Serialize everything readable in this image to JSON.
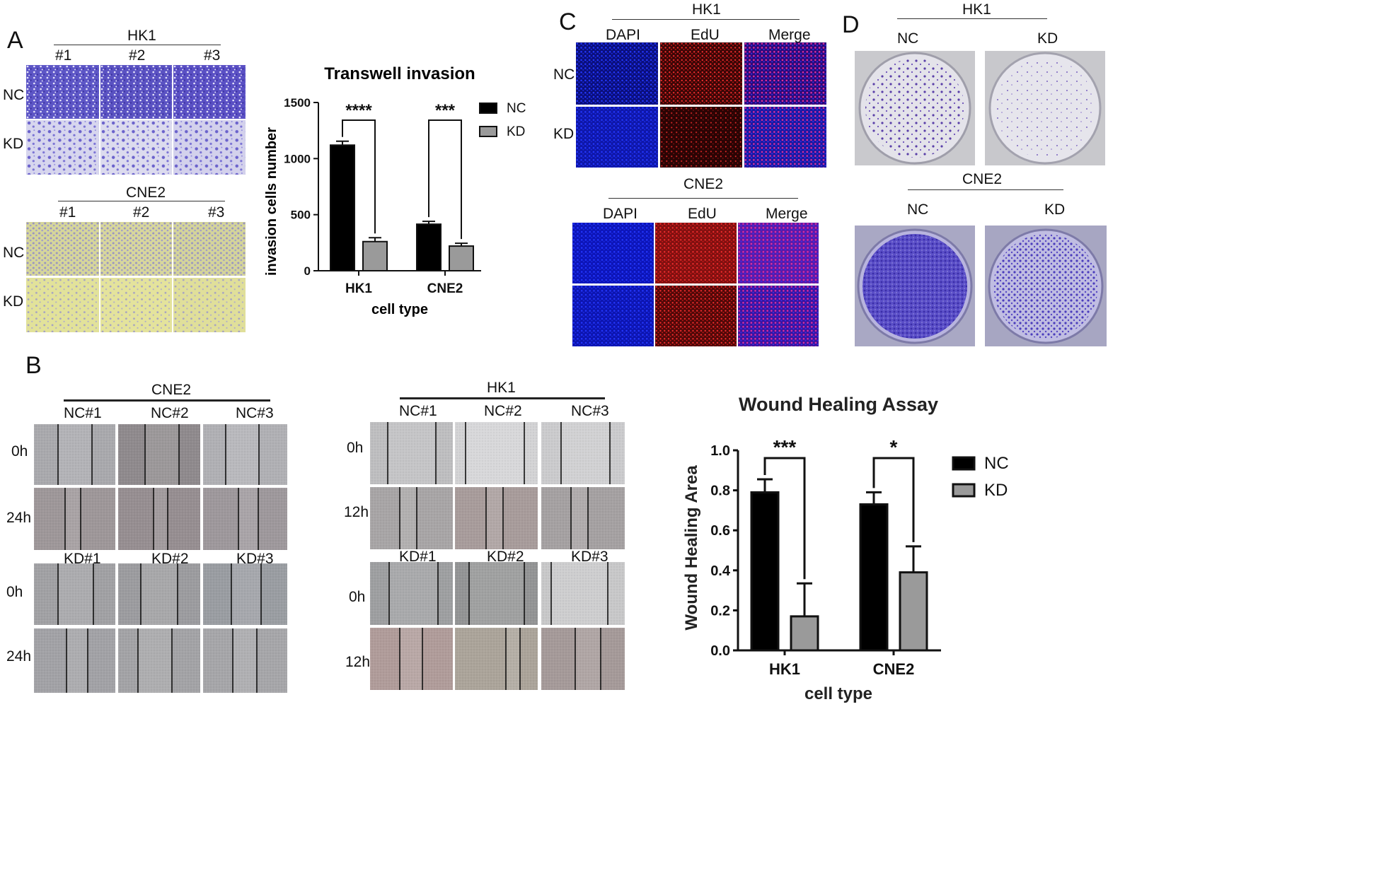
{
  "panels": {
    "A": {
      "letter": "A",
      "hk1": {
        "title": "HK1",
        "cols": [
          "#1",
          "#2",
          "#3"
        ],
        "rows": [
          "NC",
          "KD"
        ]
      },
      "cne2": {
        "title": "CNE2",
        "cols": [
          "#1",
          "#2",
          "#3"
        ],
        "rows": [
          "NC",
          "KD"
        ]
      }
    },
    "B": {
      "letter": "B",
      "cne2": {
        "title": "CNE2",
        "nc_cols": [
          "NC#1",
          "NC#2",
          "NC#3"
        ],
        "kd_cols": [
          "KD#1",
          "KD#2",
          "KD#3"
        ],
        "rows": [
          "0h",
          "24h",
          "0h",
          "24h"
        ]
      },
      "hk1": {
        "title": "HK1",
        "nc_cols": [
          "NC#1",
          "NC#2",
          "NC#3"
        ],
        "kd_cols": [
          "KD#1",
          "KD#2",
          "KD#3"
        ],
        "rows": [
          "0h",
          "12h",
          "0h",
          "12h"
        ]
      }
    },
    "C": {
      "letter": "C",
      "hk1": {
        "title": "HK1",
        "cols": [
          "DAPI",
          "EdU",
          "Merge"
        ],
        "rows": [
          "NC",
          "KD"
        ]
      },
      "cne2": {
        "title": "CNE2",
        "cols": [
          "DAPI",
          "EdU",
          "Merge"
        ]
      }
    },
    "D": {
      "letter": "D",
      "hk1": {
        "title": "HK1",
        "cols": [
          "NC",
          "KD"
        ]
      },
      "cne2": {
        "title": "CNE2",
        "cols": [
          "NC",
          "KD"
        ]
      }
    }
  },
  "colors": {
    "nc_bar": "#000000",
    "kd_bar": "#9a9a9a",
    "crystal_violet": "#5a4fc0",
    "dapi": "#1a2ad6",
    "edu": "#d42020"
  },
  "chart_data": [
    {
      "id": "transwell",
      "type": "bar",
      "title": "Transwell invasion",
      "xlabel": "cell type",
      "ylabel": "invasion cells number",
      "categories": [
        "HK1",
        "CNE2"
      ],
      "ylim": [
        0,
        1500
      ],
      "yticks": [
        0,
        500,
        1000,
        1500
      ],
      "series": [
        {
          "name": "NC",
          "values": [
            1120,
            415
          ],
          "errors": [
            35,
            25
          ]
        },
        {
          "name": "KD",
          "values": [
            260,
            220
          ],
          "errors": [
            35,
            25
          ]
        }
      ],
      "significance": [
        "****",
        "***"
      ],
      "legend": "right"
    },
    {
      "id": "wound",
      "type": "bar",
      "title": "Wound Healing Assay",
      "xlabel": "cell type",
      "ylabel": "Wound Healing Area",
      "categories": [
        "HK1",
        "CNE2"
      ],
      "ylim": [
        0,
        1.0
      ],
      "yticks": [
        "0.0",
        "0.2",
        "0.4",
        "0.6",
        "0.8",
        "1.0"
      ],
      "series": [
        {
          "name": "NC",
          "values": [
            0.79,
            0.73
          ],
          "errors": [
            0.065,
            0.06
          ]
        },
        {
          "name": "KD",
          "values": [
            0.17,
            0.39
          ],
          "errors": [
            0.165,
            0.13
          ]
        }
      ],
      "significance": [
        "***",
        "*"
      ],
      "legend": "right"
    }
  ]
}
